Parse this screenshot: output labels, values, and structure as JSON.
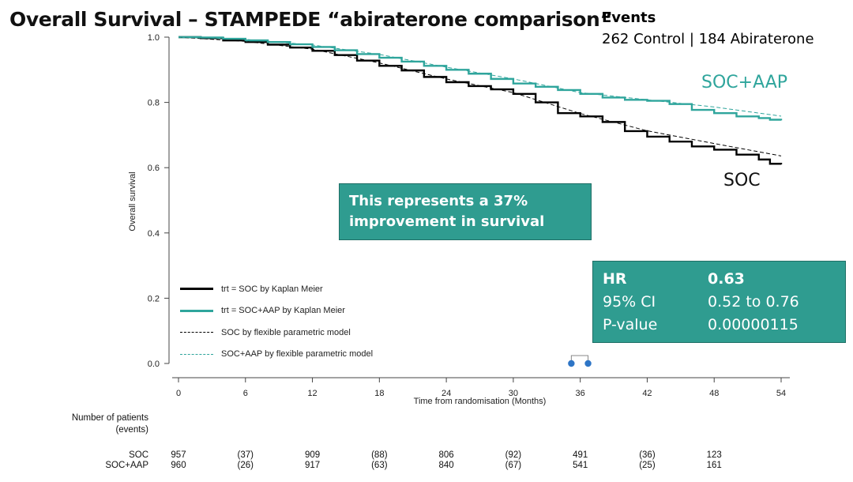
{
  "slide": {
    "title": "Overall Survival – STAMPEDE “abiraterone comparison”",
    "events_heading": "Events",
    "events_line": "262 Control | 184 Abiraterone",
    "callout_text": "This represents a 37% improvement in survival",
    "label_aap": "SOC+AAP",
    "label_soc": "SOC",
    "hr_table": [
      {
        "label": "HR",
        "value": "0.63"
      },
      {
        "label": "95% CI",
        "value": "0.52 to 0.76"
      },
      {
        "label": "P-value",
        "value": "0.00000115"
      }
    ],
    "colors": {
      "soc": "#000000",
      "aap": "#2fa59c",
      "box": "#2f9c90"
    }
  },
  "chart_data": {
    "type": "line",
    "xlabel": "Time from randomisation (Months)",
    "ylabel": "Overall survival",
    "xlim": [
      0,
      54
    ],
    "ylim": [
      0,
      1
    ],
    "xticks": [
      0,
      6,
      12,
      18,
      24,
      30,
      36,
      42,
      48,
      54
    ],
    "yticks": [
      "0.0",
      "0.2",
      "0.4",
      "0.6",
      "0.8",
      "1.0"
    ],
    "series": [
      {
        "name": "trt = SOC by Kaplan Meier",
        "style": "step-solid",
        "color": "#000000",
        "x": [
          0,
          2,
          4,
          6,
          8,
          10,
          12,
          14,
          16,
          18,
          20,
          22,
          24,
          26,
          28,
          30,
          32,
          34,
          36,
          38,
          40,
          42,
          44,
          46,
          48,
          50,
          52,
          53,
          54
        ],
        "y": [
          1.0,
          0.997,
          0.99,
          0.985,
          0.977,
          0.968,
          0.958,
          0.945,
          0.928,
          0.912,
          0.898,
          0.878,
          0.862,
          0.85,
          0.84,
          0.826,
          0.8,
          0.767,
          0.757,
          0.74,
          0.712,
          0.695,
          0.68,
          0.665,
          0.655,
          0.64,
          0.625,
          0.612,
          0.61
        ]
      },
      {
        "name": "trt = SOC+AAP by Kaplan Meier",
        "style": "step-solid",
        "color": "#2fa59c",
        "x": [
          0,
          2,
          4,
          6,
          8,
          10,
          12,
          14,
          16,
          18,
          20,
          22,
          24,
          26,
          28,
          30,
          32,
          34,
          36,
          38,
          40,
          42,
          44,
          46,
          48,
          50,
          52,
          53,
          54
        ],
        "y": [
          1.0,
          0.999,
          0.995,
          0.99,
          0.985,
          0.978,
          0.97,
          0.96,
          0.948,
          0.937,
          0.925,
          0.912,
          0.9,
          0.888,
          0.872,
          0.858,
          0.848,
          0.838,
          0.826,
          0.815,
          0.808,
          0.805,
          0.795,
          0.777,
          0.767,
          0.757,
          0.752,
          0.747,
          0.745
        ]
      },
      {
        "name": "SOC by flexible parametric model",
        "style": "dashed",
        "color": "#000000",
        "x": [
          0,
          6,
          12,
          18,
          24,
          30,
          36,
          42,
          48,
          54
        ],
        "y": [
          1.0,
          0.987,
          0.963,
          0.921,
          0.872,
          0.83,
          0.766,
          0.713,
          0.674,
          0.636
        ]
      },
      {
        "name": "SOC+AAP by flexible parametric model",
        "style": "dashed",
        "color": "#2fa59c",
        "x": [
          0,
          6,
          12,
          18,
          24,
          30,
          36,
          42,
          48,
          54
        ],
        "y": [
          1.0,
          0.993,
          0.976,
          0.947,
          0.908,
          0.872,
          0.83,
          0.808,
          0.786,
          0.758
        ]
      }
    ],
    "annotation_markers": {
      "x": [
        35.2,
        36.7
      ],
      "y": [
        0,
        0
      ]
    },
    "risk_table": {
      "heading": "Number of patients (events)",
      "x": [
        0,
        6,
        12,
        18,
        24,
        30,
        36,
        42,
        48
      ],
      "rows": [
        {
          "name": "SOC",
          "values": [
            "957",
            "(37)",
            "909",
            "(88)",
            "806",
            "(92)",
            "491",
            "(36)",
            "123"
          ]
        },
        {
          "name": "SOC+AAP",
          "values": [
            "960",
            "(26)",
            "917",
            "(63)",
            "840",
            "(67)",
            "541",
            "(25)",
            "161"
          ]
        }
      ]
    }
  }
}
